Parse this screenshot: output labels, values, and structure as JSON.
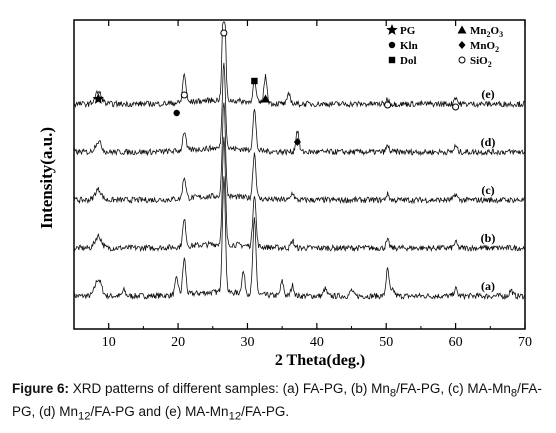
{
  "caption": {
    "label": "Figure 6:",
    "text": " XRD patterns of different samples: (a) FA-PG, (b) Mn",
    "sub1": "8",
    "text2": "/FA-PG, (c) MA-Mn",
    "sub2": "8",
    "text3": "/FA-PG, (d) Mn",
    "sub3": "12",
    "text4": "/FA-PG and (e) MA-Mn",
    "sub4": "12",
    "text5": "/FA-PG."
  },
  "legend": {
    "items": [
      {
        "symbol": "star",
        "label": "PG"
      },
      {
        "symbol": "triangle",
        "label": "Mn",
        "sub": "2",
        "suffix": "O",
        "sub2": "3"
      },
      {
        "symbol": "circle",
        "label": "Kln"
      },
      {
        "symbol": "diamond",
        "label": "MnO",
        "sub": "2"
      },
      {
        "symbol": "square",
        "label": "Dol"
      },
      {
        "symbol": "open-circle",
        "label": "SiO",
        "sub": "2"
      }
    ]
  },
  "chart_data": {
    "type": "line",
    "xlabel": "2 Theta(deg.)",
    "ylabel": "Intensity(a.u.)",
    "xlim": [
      5,
      70
    ],
    "xticks": [
      10,
      20,
      30,
      40,
      50,
      60,
      70
    ],
    "series": [
      {
        "name": "(a)",
        "baseline": 1.0,
        "peaks": [
          [
            8.5,
            0.35
          ],
          [
            12.2,
            0.12
          ],
          [
            19.8,
            0.35
          ],
          [
            20.9,
            0.75
          ],
          [
            26.6,
            2.4
          ],
          [
            29.4,
            0.45
          ],
          [
            31.0,
            1.55
          ],
          [
            35.0,
            0.3
          ],
          [
            36.5,
            0.22
          ],
          [
            41.2,
            0.15
          ],
          [
            45.0,
            0.12
          ],
          [
            50.2,
            0.55
          ],
          [
            51.0,
            0.12
          ],
          [
            60.0,
            0.15
          ],
          [
            68.0,
            0.12
          ]
        ]
      },
      {
        "name": "(b)",
        "baseline": 2.0,
        "peaks": [
          [
            8.5,
            0.25
          ],
          [
            20.9,
            0.55
          ],
          [
            26.6,
            2.2
          ],
          [
            31.0,
            1.1
          ],
          [
            36.5,
            0.15
          ],
          [
            50.2,
            0.15
          ],
          [
            60.0,
            0.12
          ]
        ]
      },
      {
        "name": "(c)",
        "baseline": 3.0,
        "peaks": [
          [
            8.5,
            0.22
          ],
          [
            20.9,
            0.45
          ],
          [
            26.6,
            2.0
          ],
          [
            31.0,
            0.95
          ],
          [
            36.5,
            0.15
          ],
          [
            50.2,
            0.12
          ],
          [
            60.0,
            0.12
          ]
        ]
      },
      {
        "name": "(d)",
        "baseline": 4.0,
        "peaks": [
          [
            8.5,
            0.22
          ],
          [
            20.9,
            0.4
          ],
          [
            26.6,
            1.8
          ],
          [
            31.0,
            0.85
          ],
          [
            37.2,
            0.45
          ],
          [
            50.2,
            0.12
          ],
          [
            60.0,
            0.12
          ]
        ]
      },
      {
        "name": "(e)",
        "baseline": 5.0,
        "peaks": [
          [
            8.5,
            0.25
          ],
          [
            20.9,
            0.6
          ],
          [
            26.6,
            2.4
          ],
          [
            31.0,
            0.45
          ],
          [
            32.6,
            0.55
          ],
          [
            36.0,
            0.2
          ],
          [
            50.2,
            0.1
          ],
          [
            60.0,
            0.15
          ]
        ]
      }
    ],
    "markers": [
      {
        "x": 8.5,
        "symbol": "star"
      },
      {
        "x": 19.8,
        "symbol": "circle"
      },
      {
        "x": 20.9,
        "symbol": "open-circle"
      },
      {
        "x": 26.6,
        "symbol": "open-circle"
      },
      {
        "x": 31.0,
        "symbol": "square"
      },
      {
        "x": 32.6,
        "symbol": "triangle"
      },
      {
        "x": 37.2,
        "symbol": "diamond"
      },
      {
        "x": 50.2,
        "symbol": "open-circle"
      },
      {
        "x": 60.0,
        "symbol": "open-circle"
      }
    ],
    "grid": false
  }
}
